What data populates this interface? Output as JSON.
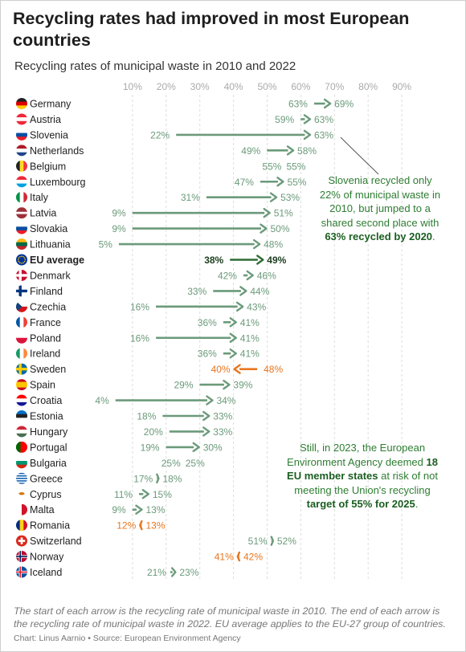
{
  "title": "Recycling rates had improved in most European countries",
  "subtitle": "Recycling rates of municipal waste in 2010 and 2022",
  "note": "The start of each arrow is the recycling rate of municipal waste in 2010. The end of each arrow is the recycling rate of municipal waste in 2022. EU average applies to the EU-27 group of countries.",
  "credit": "Chart: Linus Aarnio • Source: European Environment Agency",
  "annotations": {
    "slovenia_text": "Slovenia recycled only 22% of municipal waste in 2010, but jumped to a shared second place with",
    "slovenia_bold": "63% recycled by 2020",
    "slovenia_end": ".",
    "eea_a": "Still, in 2023, the European Environment Agency deemed",
    "eea_b": "18 EU member states",
    "eea_c": "at risk of not meeting the Union's recycling",
    "eea_d": "target of 55% for 2025",
    "eea_e": "."
  },
  "colors": {
    "increase": "#6b9a7a",
    "decrease": "#e8761f",
    "eu": "#2e6b34",
    "grid": "#dddddd",
    "axis_text": "#aaaaaa",
    "label_green": "#6b9a7a"
  },
  "chart_data": {
    "type": "dumbbell-arrow",
    "x_ticks": [
      "10%",
      "20%",
      "30%",
      "40%",
      "50%",
      "60%",
      "70%",
      "80%",
      "90%"
    ],
    "xlim": [
      0,
      100
    ],
    "series_names": [
      "2010",
      "2022"
    ],
    "rows": [
      {
        "country": "Germany",
        "v2010": 63,
        "v2022": 69,
        "flag": "de"
      },
      {
        "country": "Austria",
        "v2010": 59,
        "v2022": 63,
        "flag": "at"
      },
      {
        "country": "Slovenia",
        "v2010": 22,
        "v2022": 63,
        "flag": "si"
      },
      {
        "country": "Netherlands",
        "v2010": 49,
        "v2022": 58,
        "flag": "nl"
      },
      {
        "country": "Belgium",
        "v2010": 55,
        "v2022": 55,
        "flag": "be"
      },
      {
        "country": "Luxembourg",
        "v2010": 47,
        "v2022": 55,
        "flag": "lu"
      },
      {
        "country": "Italy",
        "v2010": 31,
        "v2022": 53,
        "flag": "it"
      },
      {
        "country": "Latvia",
        "v2010": 9,
        "v2022": 51,
        "flag": "lv"
      },
      {
        "country": "Slovakia",
        "v2010": 9,
        "v2022": 50,
        "flag": "sk"
      },
      {
        "country": "Lithuania",
        "v2010": 5,
        "v2022": 48,
        "flag": "lt"
      },
      {
        "country": "EU average",
        "v2010": 38,
        "v2022": 49,
        "flag": "eu",
        "highlight": true
      },
      {
        "country": "Denmark",
        "v2010": 42,
        "v2022": 46,
        "flag": "dk"
      },
      {
        "country": "Finland",
        "v2010": 33,
        "v2022": 44,
        "flag": "fi"
      },
      {
        "country": "Czechia",
        "v2010": 16,
        "v2022": 43,
        "flag": "cz"
      },
      {
        "country": "France",
        "v2010": 36,
        "v2022": 41,
        "flag": "fr"
      },
      {
        "country": "Poland",
        "v2010": 16,
        "v2022": 41,
        "flag": "pl"
      },
      {
        "country": "Ireland",
        "v2010": 36,
        "v2022": 41,
        "flag": "ie"
      },
      {
        "country": "Sweden",
        "v2010": 48,
        "v2022": 40,
        "flag": "se"
      },
      {
        "country": "Spain",
        "v2010": 29,
        "v2022": 39,
        "flag": "es"
      },
      {
        "country": "Croatia",
        "v2010": 4,
        "v2022": 34,
        "flag": "hr"
      },
      {
        "country": "Estonia",
        "v2010": 18,
        "v2022": 33,
        "flag": "ee"
      },
      {
        "country": "Hungary",
        "v2010": 20,
        "v2022": 33,
        "flag": "hu"
      },
      {
        "country": "Portugal",
        "v2010": 19,
        "v2022": 30,
        "flag": "pt"
      },
      {
        "country": "Bulgaria",
        "v2010": 25,
        "v2022": 25,
        "flag": "bg"
      },
      {
        "country": "Greece",
        "v2010": 17,
        "v2022": 18,
        "flag": "gr"
      },
      {
        "country": "Cyprus",
        "v2010": 11,
        "v2022": 15,
        "flag": "cy"
      },
      {
        "country": "Malta",
        "v2010": 9,
        "v2022": 13,
        "flag": "mt"
      },
      {
        "country": "Romania",
        "v2010": 13,
        "v2022": 12,
        "flag": "ro"
      },
      {
        "country": "Switzerland",
        "v2010": 51,
        "v2022": 52,
        "flag": "ch"
      },
      {
        "country": "Norway",
        "v2010": 42,
        "v2022": 41,
        "flag": "no"
      },
      {
        "country": "Iceland",
        "v2010": 21,
        "v2022": 23,
        "flag": "is"
      }
    ]
  }
}
